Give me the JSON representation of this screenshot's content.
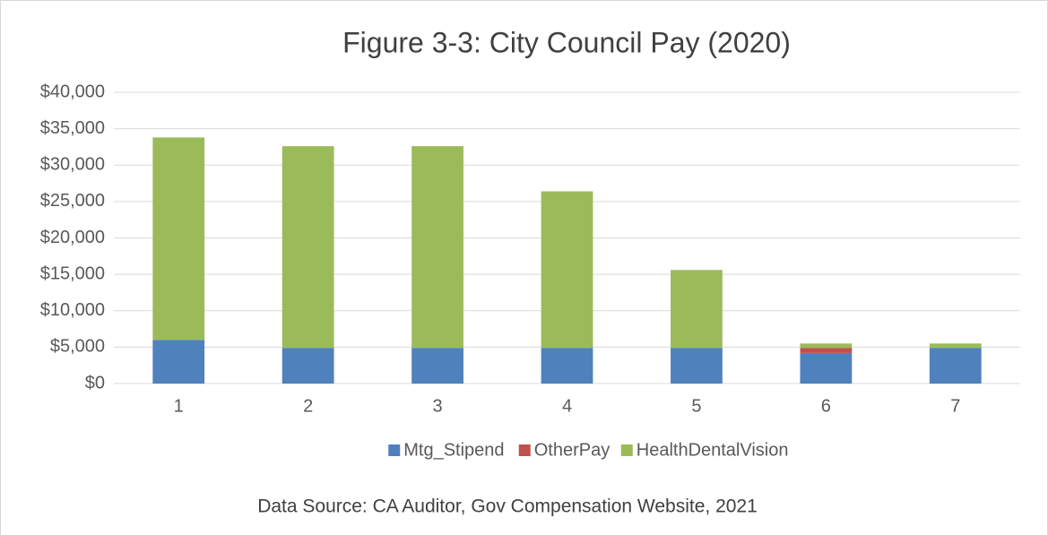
{
  "chart_data": {
    "type": "stacked_bar",
    "title": "Figure 3-3: City Council Pay (2020)",
    "categories": [
      "1",
      "2",
      "3",
      "4",
      "5",
      "6",
      "7"
    ],
    "series": [
      {
        "name": "Mtg_Stipend",
        "color": "#4f81bd",
        "values": [
          6000,
          4900,
          4900,
          4900,
          4900,
          4200,
          4900
        ]
      },
      {
        "name": "OtherPay",
        "color": "#c0504d",
        "values": [
          0,
          0,
          0,
          0,
          0,
          700,
          0
        ]
      },
      {
        "name": "HealthDentalVision",
        "color": "#9bbb59",
        "values": [
          27800,
          27700,
          27700,
          21500,
          10700,
          600,
          600
        ]
      }
    ],
    "ylim": [
      0,
      40000
    ],
    "yticks": [
      {
        "value": 0,
        "label": "$0"
      },
      {
        "value": 5000,
        "label": "$5,000"
      },
      {
        "value": 10000,
        "label": "$10,000"
      },
      {
        "value": 15000,
        "label": "$15,000"
      },
      {
        "value": 20000,
        "label": "$20,000"
      },
      {
        "value": 25000,
        "label": "$25,000"
      },
      {
        "value": 30000,
        "label": "$30,000"
      },
      {
        "value": 35000,
        "label": "$35,000"
      },
      {
        "value": 40000,
        "label": "$40,000"
      }
    ],
    "grid": true,
    "legend": "bottom",
    "annotation": "Data Source:  CA Auditor, Gov Compensation Website, 2021"
  }
}
